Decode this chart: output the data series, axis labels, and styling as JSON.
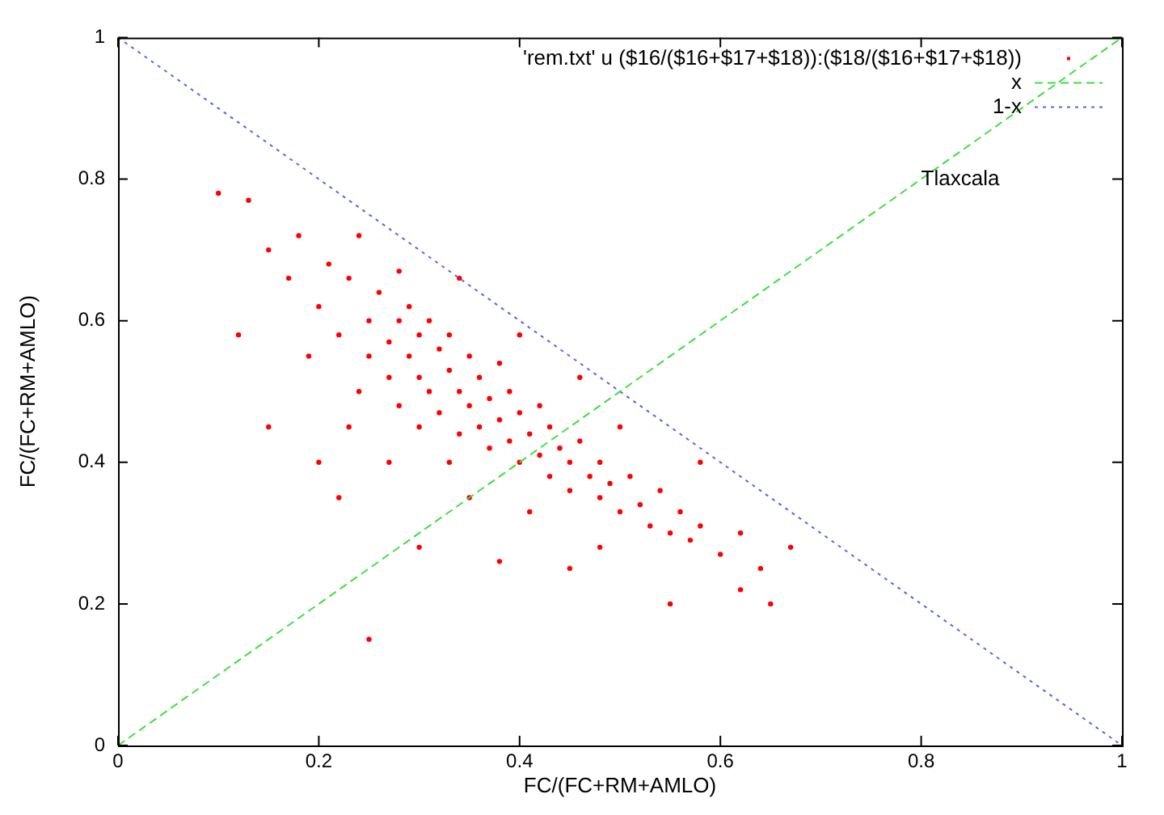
{
  "chart_data": {
    "type": "scatter",
    "xlabel": "FC/(FC+RM+AMLO)",
    "ylabel": "FC/(FC+RM+AMLO)",
    "annotations": [
      "Tlaxcala"
    ],
    "xlim": [
      0,
      1
    ],
    "ylim": [
      0,
      1
    ],
    "xticks": [
      0,
      0.2,
      0.4,
      0.6,
      0.8,
      1
    ],
    "yticks": [
      0,
      0.2,
      0.4,
      0.6,
      0.8,
      1
    ],
    "grid": false,
    "legend": "top right",
    "series": [
      {
        "name": "'rem.txt' u ($16/($16+$17+$18)):($18/($16+$17+$18))",
        "color": "#ff0000",
        "x": [
          0.1,
          0.13,
          0.12,
          0.15,
          0.17,
          0.18,
          0.2,
          0.21,
          0.19,
          0.22,
          0.23,
          0.24,
          0.25,
          0.25,
          0.26,
          0.27,
          0.27,
          0.28,
          0.28,
          0.29,
          0.29,
          0.3,
          0.3,
          0.3,
          0.31,
          0.31,
          0.32,
          0.32,
          0.33,
          0.33,
          0.34,
          0.34,
          0.35,
          0.35,
          0.36,
          0.36,
          0.37,
          0.37,
          0.38,
          0.38,
          0.39,
          0.39,
          0.4,
          0.4,
          0.41,
          0.42,
          0.42,
          0.43,
          0.43,
          0.44,
          0.45,
          0.45,
          0.46,
          0.47,
          0.48,
          0.48,
          0.49,
          0.5,
          0.51,
          0.52,
          0.53,
          0.54,
          0.55,
          0.56,
          0.57,
          0.58,
          0.6,
          0.62,
          0.64,
          0.67,
          0.65,
          0.55,
          0.45,
          0.38,
          0.3,
          0.25,
          0.2,
          0.15,
          0.22,
          0.35,
          0.5,
          0.46,
          0.4,
          0.34,
          0.28,
          0.24,
          0.58,
          0.62,
          0.33,
          0.41,
          0.48,
          0.27,
          0.23
        ],
        "values": [
          0.78,
          0.77,
          0.58,
          0.7,
          0.66,
          0.72,
          0.62,
          0.68,
          0.55,
          0.58,
          0.66,
          0.5,
          0.6,
          0.55,
          0.64,
          0.57,
          0.52,
          0.6,
          0.48,
          0.62,
          0.55,
          0.58,
          0.52,
          0.45,
          0.6,
          0.5,
          0.56,
          0.47,
          0.53,
          0.58,
          0.5,
          0.44,
          0.55,
          0.48,
          0.52,
          0.45,
          0.49,
          0.42,
          0.54,
          0.46,
          0.5,
          0.43,
          0.47,
          0.4,
          0.44,
          0.48,
          0.41,
          0.45,
          0.38,
          0.42,
          0.4,
          0.36,
          0.43,
          0.38,
          0.35,
          0.4,
          0.37,
          0.33,
          0.38,
          0.34,
          0.31,
          0.36,
          0.3,
          0.33,
          0.29,
          0.31,
          0.27,
          0.3,
          0.25,
          0.28,
          0.2,
          0.2,
          0.25,
          0.26,
          0.28,
          0.15,
          0.4,
          0.45,
          0.35,
          0.35,
          0.45,
          0.52,
          0.58,
          0.66,
          0.67,
          0.72,
          0.4,
          0.22,
          0.4,
          0.33,
          0.28,
          0.4,
          0.45
        ]
      },
      {
        "name": "x",
        "type": "line",
        "color": "#40e040",
        "line_style": "dashed",
        "x": [
          0,
          1
        ],
        "values": [
          0,
          1
        ]
      },
      {
        "name": "1-x",
        "type": "line",
        "color": "#6060e8",
        "line_style": "dotted",
        "x": [
          0,
          1
        ],
        "values": [
          1,
          0
        ]
      }
    ]
  }
}
